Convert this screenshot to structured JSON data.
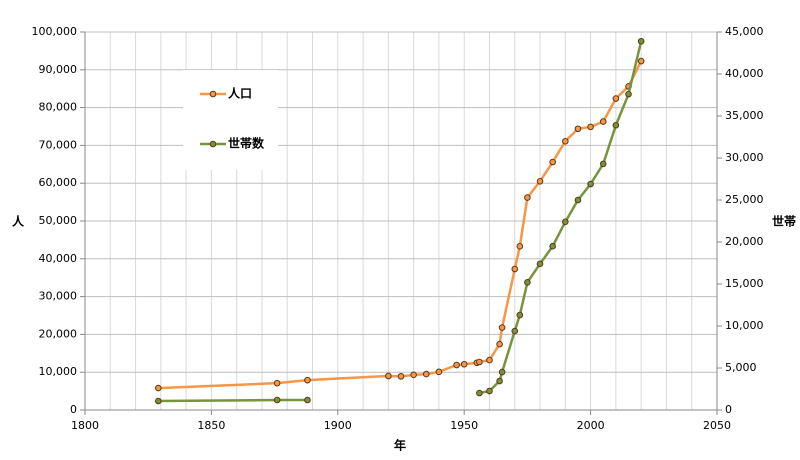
{
  "chart_data": {
    "type": "line",
    "x_label": "年",
    "y_label": "人",
    "y2_label": "世帯",
    "x": [
      1829,
      1876,
      1888,
      1920,
      1925,
      1930,
      1935,
      1940,
      1947,
      1950,
      1955,
      1956,
      1960,
      1964,
      1965,
      1970,
      1972,
      1975,
      1980,
      1985,
      1990,
      1995,
      2000,
      2005,
      2010,
      2015,
      2020
    ],
    "series": [
      {
        "name": "人口",
        "color": "#f79646",
        "axis": "y",
        "values": [
          5800,
          7100,
          7900,
          9000,
          8900,
          9300,
          9500,
          10100,
          11900,
          12100,
          12500,
          12700,
          13200,
          17400,
          21800,
          37300,
          43300,
          56200,
          60500,
          65600,
          71100,
          74400,
          74900,
          76300,
          82400,
          85600,
          92300
        ]
      },
      {
        "name": "世帯数",
        "color": "#77933c",
        "axis": "y2",
        "values": [
          1070,
          1190,
          1190,
          null,
          null,
          null,
          null,
          null,
          null,
          null,
          null,
          2020,
          2260,
          3450,
          4520,
          9400,
          11300,
          15200,
          17400,
          19500,
          22400,
          25000,
          26900,
          29300,
          33900,
          37600,
          43900
        ]
      }
    ],
    "xlim": [
      1800,
      2050
    ],
    "xticks": [
      1800,
      1850,
      1900,
      1950,
      2000,
      2050
    ],
    "ylim": [
      0,
      100000
    ],
    "yticks": [
      0,
      {
        "value": 10000,
        "label": "10,000"
      },
      {
        "value": 20000,
        "label": "20,000"
      },
      {
        "value": 30000,
        "label": "30,000"
      },
      {
        "value": 40000,
        "label": "40,000"
      },
      {
        "value": 50000,
        "label": "50,000"
      },
      {
        "value": 60000,
        "label": "60,000"
      },
      {
        "value": 70000,
        "label": "70,000"
      },
      {
        "value": 80000,
        "label": "80,000"
      },
      {
        "value": 90000,
        "label": "90,000"
      },
      {
        "value": 100000,
        "label": "100,000"
      }
    ],
    "y2lim": [
      0,
      45000
    ],
    "y2ticks": [
      0,
      {
        "value": 5000,
        "label": "5,000"
      },
      {
        "value": 10000,
        "label": "10,000"
      },
      {
        "value": 15000,
        "label": "15,000"
      },
      {
        "value": 20000,
        "label": "20,000"
      },
      {
        "value": 25000,
        "label": "25,000"
      },
      {
        "value": 30000,
        "label": "30,000"
      },
      {
        "value": 35000,
        "label": "35,000"
      },
      {
        "value": 40000,
        "label": "40,000"
      },
      {
        "value": 45000,
        "label": "45,000"
      }
    ],
    "grid": true
  }
}
